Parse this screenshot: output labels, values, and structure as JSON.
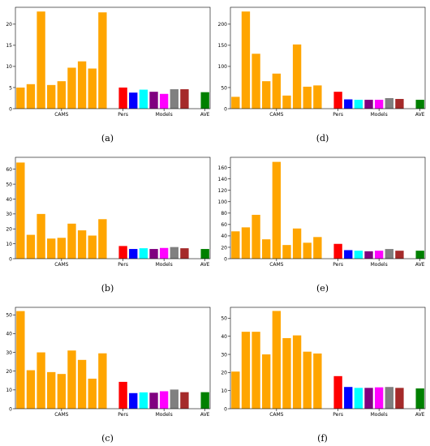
{
  "chart_data": [
    {
      "panel": "(a)",
      "type": "bar",
      "categories": [
        "CAMS",
        "CAMS",
        "CAMS",
        "CAMS",
        "CAMS",
        "CAMS",
        "CAMS",
        "CAMS",
        "CAMS",
        "CAMS",
        "Pers",
        "Models",
        "Models",
        "Models",
        "Models",
        "Models",
        "Models",
        "Models",
        "AVE"
      ],
      "values": [
        5.0,
        5.8,
        23.0,
        5.6,
        6.5,
        9.7,
        11.2,
        9.5,
        22.8,
        0,
        5.0,
        3.8,
        4.5,
        4.0,
        3.5,
        4.6,
        4.6,
        0,
        3.9
      ],
      "ylim": [
        0,
        24
      ],
      "yticks": [
        0,
        5,
        10,
        15,
        20
      ],
      "xtick_labels": [
        "CAMS",
        "Pers",
        "Models",
        "AVE"
      ]
    },
    {
      "panel": "(d)",
      "type": "bar",
      "categories": [
        "CAMS",
        "CAMS",
        "CAMS",
        "CAMS",
        "CAMS",
        "CAMS",
        "CAMS",
        "CAMS",
        "CAMS",
        "CAMS",
        "Pers",
        "Models",
        "Models",
        "Models",
        "Models",
        "Models",
        "Models",
        "Models",
        "AVE"
      ],
      "values": [
        28,
        230,
        130,
        65,
        83,
        31,
        152,
        52,
        55,
        0,
        40,
        22,
        21,
        21,
        21,
        25,
        23,
        0,
        21
      ],
      "ylim": [
        0,
        240
      ],
      "yticks": [
        0,
        50,
        100,
        150,
        200
      ],
      "xtick_labels": [
        "CAMS",
        "Pers",
        "Models",
        "AVE"
      ]
    },
    {
      "panel": "(b)",
      "type": "bar",
      "categories": [
        "CAMS",
        "CAMS",
        "CAMS",
        "CAMS",
        "CAMS",
        "CAMS",
        "CAMS",
        "CAMS",
        "CAMS",
        "CAMS",
        "Pers",
        "Models",
        "Models",
        "Models",
        "Models",
        "Models",
        "Models",
        "Models",
        "AVE"
      ],
      "values": [
        64.5,
        16.0,
        30.0,
        13.5,
        14.0,
        23.5,
        19.0,
        15.5,
        26.5,
        0,
        8.5,
        6.5,
        7.0,
        6.5,
        7.2,
        7.8,
        7.0,
        0,
        6.5
      ],
      "ylim": [
        0,
        68
      ],
      "yticks": [
        0,
        10,
        20,
        30,
        40,
        50,
        60
      ],
      "xtick_labels": [
        "CAMS",
        "Pers",
        "Models",
        "AVE"
      ]
    },
    {
      "panel": "(e)",
      "type": "bar",
      "categories": [
        "CAMS",
        "CAMS",
        "CAMS",
        "CAMS",
        "CAMS",
        "CAMS",
        "CAMS",
        "CAMS",
        "CAMS",
        "CAMS",
        "Pers",
        "Models",
        "Models",
        "Models",
        "Models",
        "Models",
        "Models",
        "Models",
        "AVE"
      ],
      "values": [
        48,
        55,
        77,
        34,
        170,
        24,
        53,
        28,
        38,
        0,
        26,
        15,
        14,
        13,
        14,
        17,
        14,
        0,
        14
      ],
      "ylim": [
        0,
        178
      ],
      "yticks": [
        0,
        20,
        40,
        60,
        80,
        100,
        120,
        140,
        160
      ],
      "xtick_labels": [
        "CAMS",
        "Pers",
        "Models",
        "AVE"
      ]
    },
    {
      "panel": "(c)",
      "type": "bar",
      "categories": [
        "CAMS",
        "CAMS",
        "CAMS",
        "CAMS",
        "CAMS",
        "CAMS",
        "CAMS",
        "CAMS",
        "CAMS",
        "CAMS",
        "Pers",
        "Models",
        "Models",
        "Models",
        "Models",
        "Models",
        "Models",
        "Models",
        "AVE"
      ],
      "values": [
        52,
        20.5,
        30,
        19.5,
        18.5,
        31,
        26,
        16,
        29.5,
        0,
        14.3,
        8.3,
        8.7,
        8.5,
        9.3,
        10.2,
        8.8,
        0,
        8.8
      ],
      "ylim": [
        0,
        54
      ],
      "yticks": [
        0,
        10,
        20,
        30,
        40,
        50
      ],
      "xtick_labels": [
        "CAMS",
        "Pers",
        "Models",
        "AVE"
      ]
    },
    {
      "panel": "(f)",
      "type": "bar",
      "categories": [
        "CAMS",
        "CAMS",
        "CAMS",
        "CAMS",
        "CAMS",
        "CAMS",
        "CAMS",
        "CAMS",
        "CAMS",
        "CAMS",
        "Pers",
        "Models",
        "Models",
        "Models",
        "Models",
        "Models",
        "Models",
        "Models",
        "AVE"
      ],
      "values": [
        20.5,
        42.5,
        42.5,
        30,
        54,
        39,
        40.5,
        31.5,
        30.5,
        0,
        18,
        12,
        11.5,
        11.5,
        11.8,
        12,
        11.5,
        0,
        11.2
      ],
      "ylim": [
        0,
        56
      ],
      "yticks": [
        0,
        10,
        20,
        30,
        40,
        50
      ],
      "xtick_labels": [
        "CAMS",
        "Pers",
        "Models",
        "AVE"
      ]
    }
  ],
  "colors": {
    "cams": "#FFA500",
    "pers": "#FF0000",
    "models": [
      "#0000FF",
      "#00FFFF",
      "#800080",
      "#FF00FF",
      "#808080",
      "#A52A2A"
    ],
    "ave": "#008000"
  },
  "panel_labels": [
    "(a)",
    "(d)",
    "(b)",
    "(e)",
    "(c)",
    "(f)"
  ]
}
